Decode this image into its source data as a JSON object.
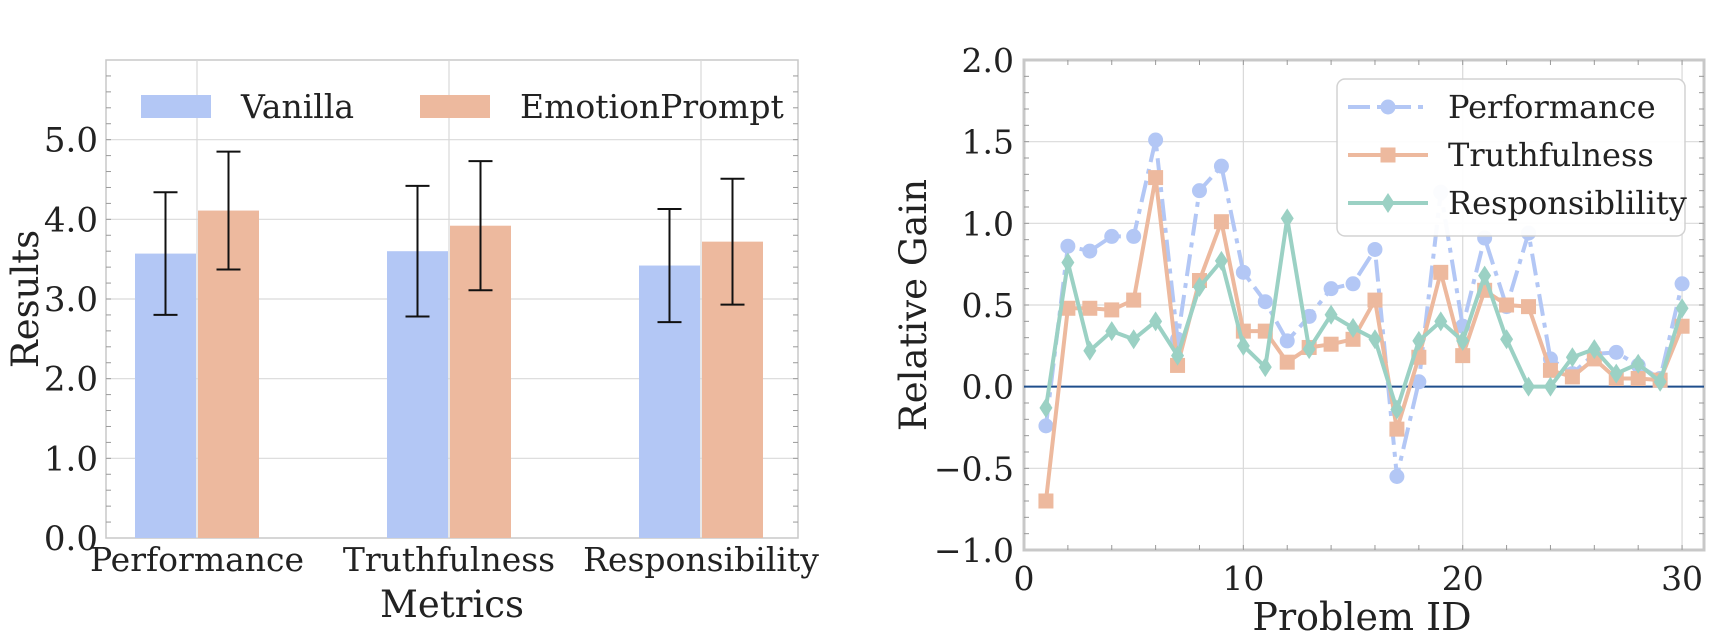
{
  "chart_data": [
    {
      "type": "bar",
      "title": "",
      "xlabel": "Metrics",
      "ylabel": "Results",
      "categories": [
        "Performance",
        "Truthfulness",
        "Responsibility"
      ],
      "ylim": [
        0,
        6
      ],
      "yticks": [
        "0.0",
        "1.0",
        "2.0",
        "3.0",
        "4.0",
        "5.0"
      ],
      "grid": true,
      "legend": "top",
      "series": [
        {
          "name": "Vanilla",
          "color": "#b3c7f5",
          "values": [
            3.57,
            3.6,
            3.42
          ],
          "error": [
            0.77,
            0.82,
            0.71
          ]
        },
        {
          "name": "EmotionPrompt",
          "color": "#edb99e",
          "values": [
            4.11,
            3.92,
            3.72
          ],
          "error": [
            0.74,
            0.81,
            0.79
          ]
        }
      ]
    },
    {
      "type": "line",
      "title": "",
      "xlabel": "Problem ID",
      "ylabel": "Relative Gain",
      "xlim": [
        0,
        31
      ],
      "ylim": [
        -1.0,
        2.0
      ],
      "xticks": [
        "0",
        "10",
        "20",
        "30"
      ],
      "yticks": [
        "−1.0",
        "−0.5",
        "0.0",
        "0.5",
        "1.0",
        "1.5",
        "2.0"
      ],
      "grid": true,
      "legend": "top-right",
      "reference_line": {
        "y": 0.0,
        "color": "#1f4e8c"
      },
      "x": [
        1,
        2,
        3,
        4,
        5,
        6,
        7,
        8,
        9,
        10,
        11,
        12,
        13,
        14,
        15,
        16,
        17,
        18,
        19,
        20,
        21,
        22,
        23,
        24,
        25,
        26,
        27,
        28,
        29,
        30
      ],
      "series": [
        {
          "name": "Performance",
          "color": "#b3c7f5",
          "marker": "circle",
          "dashed": true,
          "values": [
            -0.24,
            0.86,
            0.83,
            0.92,
            0.92,
            1.51,
            0.29,
            1.2,
            1.35,
            0.7,
            0.52,
            0.28,
            0.43,
            0.6,
            0.63,
            0.84,
            -0.55,
            0.03,
            1.19,
            0.37,
            0.91,
            0.49,
            0.94,
            0.17,
            0.08,
            0.2,
            0.21,
            0.13,
            0.05,
            0.63
          ]
        },
        {
          "name": "Truthfulness",
          "color": "#edb99e",
          "marker": "square",
          "dashed": false,
          "values": [
            -0.7,
            0.48,
            0.48,
            0.47,
            0.53,
            1.28,
            0.13,
            0.65,
            1.01,
            0.34,
            0.34,
            0.15,
            0.24,
            0.26,
            0.29,
            0.53,
            -0.26,
            0.18,
            0.7,
            0.19,
            0.59,
            0.5,
            0.49,
            0.1,
            0.06,
            0.17,
            0.05,
            0.05,
            0.04,
            0.37
          ]
        },
        {
          "name": "Responsiblility",
          "color": "#9bd1c4",
          "marker": "diamond",
          "dashed": false,
          "values": [
            -0.13,
            0.76,
            0.22,
            0.34,
            0.29,
            0.4,
            0.19,
            0.61,
            0.77,
            0.25,
            0.12,
            1.03,
            0.23,
            0.44,
            0.36,
            0.29,
            -0.14,
            0.28,
            0.4,
            0.28,
            0.68,
            0.29,
            0.0,
            0.0,
            0.18,
            0.23,
            0.08,
            0.14,
            0.03,
            0.48
          ]
        }
      ]
    }
  ]
}
